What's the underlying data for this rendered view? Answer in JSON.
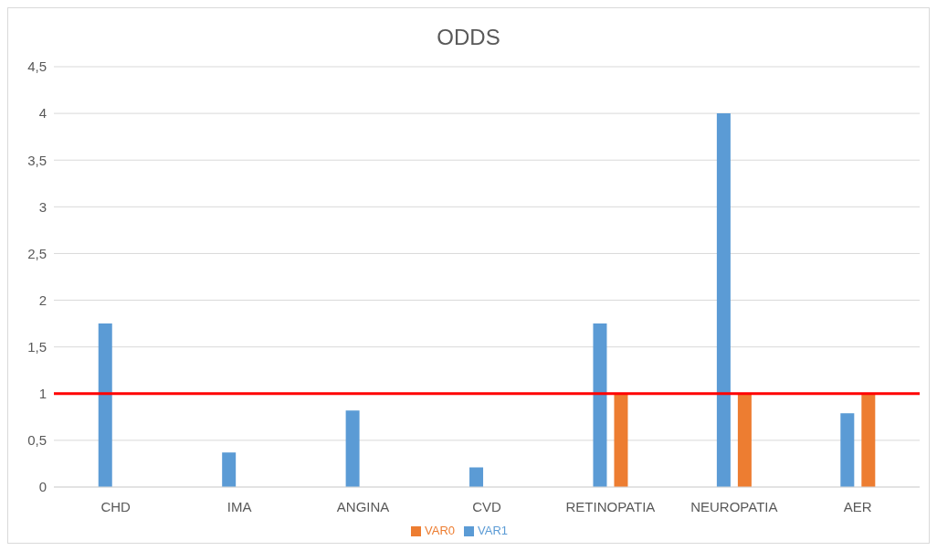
{
  "chart_data": {
    "type": "bar",
    "title": "ODDS",
    "categories": [
      "CHD",
      "IMA",
      "ANGINA",
      "CVD",
      "RETINOPATIA",
      "NEUROPATIA",
      "AER"
    ],
    "series": [
      {
        "name": "VAR1",
        "color": "#5b9bd5",
        "values": [
          1.75,
          0.37,
          0.82,
          0.21,
          1.75,
          4,
          0.79
        ]
      },
      {
        "name": "VAR0",
        "color": "#ed7d31",
        "values": [
          null,
          null,
          null,
          null,
          1,
          1,
          1
        ]
      }
    ],
    "ylim": [
      0,
      4.5
    ],
    "yticks": [
      0,
      {
        "value": 0.5,
        "label": "0,5"
      },
      1,
      {
        "value": 1.5,
        "label": "1,5"
      },
      2,
      {
        "value": 2.5,
        "label": "2,5"
      },
      3,
      {
        "value": 3.5,
        "label": "3,5"
      },
      4,
      {
        "value": 4.5,
        "label": "4,5"
      }
    ],
    "grid": "y",
    "legend": "bottom",
    "ref_lines": [
      {
        "axis": "y",
        "value": 1,
        "color": "#ff0000"
      }
    ]
  }
}
